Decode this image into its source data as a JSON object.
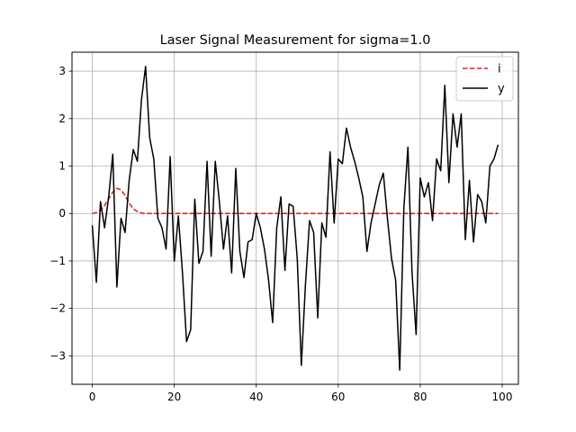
{
  "chart_data": {
    "type": "line",
    "title": "Laser Signal Measurement for sigma=1.0",
    "xlabel": "",
    "ylabel": "",
    "xlim": [
      -4.95,
      103.95
    ],
    "ylim": [
      -3.6,
      3.4
    ],
    "xticks": [
      0,
      20,
      40,
      60,
      80,
      100
    ],
    "yticks": [
      -3,
      -2,
      -1,
      0,
      1,
      2,
      3
    ],
    "grid": true,
    "legend_position": "top-right",
    "series": [
      {
        "name": "i",
        "color": "#d62728",
        "style": "dashed",
        "x": [
          0,
          1,
          2,
          3,
          4,
          5,
          6,
          7,
          8,
          9,
          10,
          11,
          12,
          13,
          14,
          15,
          16,
          17,
          18,
          19,
          20,
          21,
          22,
          23,
          24,
          25,
          26,
          27,
          28,
          29,
          30,
          31,
          32,
          33,
          34,
          35,
          36,
          37,
          38,
          39,
          40,
          41,
          42,
          43,
          44,
          45,
          46,
          47,
          48,
          49,
          50,
          51,
          52,
          53,
          54,
          55,
          56,
          57,
          58,
          59,
          60,
          61,
          62,
          63,
          64,
          65,
          66,
          67,
          68,
          69,
          70,
          71,
          72,
          73,
          74,
          75,
          76,
          77,
          78,
          79,
          80,
          81,
          82,
          83,
          84,
          85,
          86,
          87,
          88,
          89,
          90,
          91,
          92,
          93,
          94,
          95,
          96,
          97,
          98,
          99
        ],
        "values": [
          0.0,
          0.02,
          0.07,
          0.17,
          0.31,
          0.45,
          0.53,
          0.5,
          0.38,
          0.22,
          0.1,
          0.04,
          0.01,
          0,
          0,
          0,
          0,
          0,
          0,
          0,
          0,
          0,
          0,
          0,
          0,
          0,
          0,
          0,
          0,
          0,
          0,
          0,
          0,
          0,
          0,
          0,
          0,
          0,
          0,
          0,
          0,
          0,
          0,
          0,
          0,
          0,
          0,
          0,
          0,
          0,
          0,
          0,
          0,
          0,
          0,
          0,
          0,
          0,
          0,
          0,
          0,
          0,
          0,
          0,
          0,
          0,
          0,
          0,
          0,
          0,
          0,
          0,
          0,
          0,
          0,
          0,
          0,
          0,
          0,
          0,
          0,
          0,
          0,
          0,
          0,
          0,
          0,
          0,
          0,
          0,
          0,
          0,
          0,
          0,
          0,
          0,
          0,
          0,
          0,
          0
        ]
      },
      {
        "name": "y",
        "color": "#000000",
        "style": "solid",
        "x": [
          0,
          1,
          2,
          3,
          4,
          5,
          6,
          7,
          8,
          9,
          10,
          11,
          12,
          13,
          14,
          15,
          16,
          17,
          18,
          19,
          20,
          21,
          22,
          23,
          24,
          25,
          26,
          27,
          28,
          29,
          30,
          31,
          32,
          33,
          34,
          35,
          36,
          37,
          38,
          39,
          40,
          41,
          42,
          43,
          44,
          45,
          46,
          47,
          48,
          49,
          50,
          51,
          52,
          53,
          54,
          55,
          56,
          57,
          58,
          59,
          60,
          61,
          62,
          63,
          64,
          65,
          66,
          67,
          68,
          69,
          70,
          71,
          72,
          73,
          74,
          75,
          76,
          77,
          78,
          79,
          80,
          81,
          82,
          83,
          84,
          85,
          86,
          87,
          88,
          89,
          90,
          91,
          92,
          93,
          94,
          95,
          96,
          97,
          98,
          99
        ],
        "values": [
          -0.25,
          -1.45,
          0.25,
          -0.3,
          0.35,
          1.25,
          -1.55,
          -0.1,
          -0.4,
          0.7,
          1.35,
          1.1,
          2.4,
          3.1,
          1.6,
          1.15,
          -0.1,
          -0.3,
          -0.75,
          1.2,
          -1.0,
          -0.05,
          -1.25,
          -2.7,
          -2.45,
          0.3,
          -1.05,
          -0.8,
          1.1,
          -0.9,
          1.1,
          0.25,
          -0.75,
          -0.05,
          -1.25,
          0.95,
          -0.8,
          -1.35,
          -0.6,
          -0.55,
          0.0,
          -0.3,
          -0.75,
          -1.4,
          -2.3,
          -0.3,
          0.35,
          -1.2,
          0.2,
          0.15,
          -0.95,
          -3.2,
          -1.5,
          -0.15,
          -0.4,
          -2.2,
          -0.2,
          -0.5,
          1.3,
          -0.2,
          1.15,
          1.05,
          1.8,
          1.4,
          1.1,
          0.75,
          0.35,
          -0.8,
          -0.2,
          0.2,
          0.6,
          0.85,
          -0.1,
          -0.95,
          -1.4,
          -3.3,
          0.1,
          1.4,
          -1.25,
          -2.55,
          0.75,
          0.35,
          0.65,
          -0.15,
          1.15,
          0.9,
          2.7,
          0.65,
          2.1,
          1.4,
          2.1,
          -0.55,
          0.7,
          -0.6,
          0.4,
          0.25,
          -0.2,
          1.0,
          1.15,
          1.45
        ]
      }
    ]
  }
}
